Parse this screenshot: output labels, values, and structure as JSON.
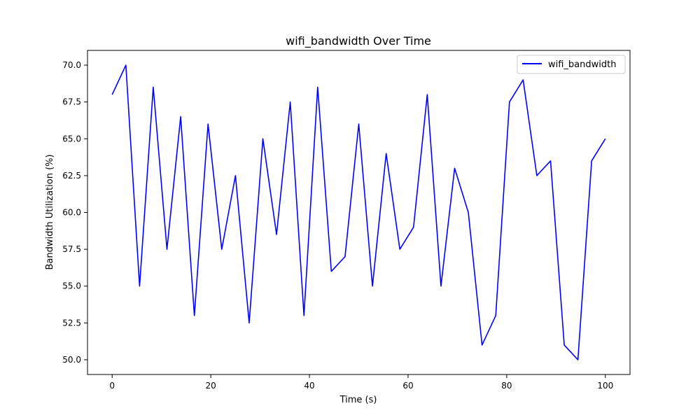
{
  "chart_data": {
    "type": "line",
    "title": "wifi_bandwidth Over Time",
    "xlabel": "Time (s)",
    "ylabel": "Bandwidth Utilization (%)",
    "xlim": [
      -5,
      105
    ],
    "ylim": [
      49,
      71
    ],
    "xticks": [
      0,
      20,
      40,
      60,
      80,
      100
    ],
    "xtick_labels": [
      "0",
      "20",
      "40",
      "60",
      "80",
      "100"
    ],
    "yticks": [
      50.0,
      52.5,
      55.0,
      57.5,
      60.0,
      62.5,
      65.0,
      67.5,
      70.0
    ],
    "ytick_labels": [
      "50.0",
      "52.5",
      "55.0",
      "57.5",
      "60.0",
      "62.5",
      "65.0",
      "67.5",
      "70.0"
    ],
    "grid": false,
    "legend_position": "top-right",
    "series": [
      {
        "name": "wifi_bandwidth",
        "color": "#0000ff",
        "x": [
          0,
          2.78,
          5.56,
          8.33,
          11.11,
          13.89,
          16.67,
          19.44,
          22.22,
          25.0,
          27.78,
          30.56,
          33.33,
          36.11,
          38.89,
          41.67,
          44.44,
          47.22,
          50.0,
          52.78,
          55.56,
          58.33,
          61.11,
          63.89,
          66.67,
          69.44,
          72.22,
          75.0,
          77.78,
          80.56,
          83.33,
          86.11,
          88.89,
          91.67,
          94.44,
          97.22,
          100.0
        ],
        "y": [
          68.0,
          70.0,
          55.0,
          68.5,
          57.5,
          66.5,
          53.0,
          66.0,
          57.5,
          62.5,
          52.5,
          65.0,
          58.5,
          67.5,
          53.0,
          68.5,
          56.0,
          57.0,
          66.0,
          55.0,
          64.0,
          57.5,
          59.0,
          68.0,
          55.0,
          63.0,
          60.0,
          51.0,
          53.0,
          67.5,
          69.0,
          62.5,
          63.5,
          51.0,
          50.0,
          63.5,
          65.0
        ]
      }
    ]
  }
}
